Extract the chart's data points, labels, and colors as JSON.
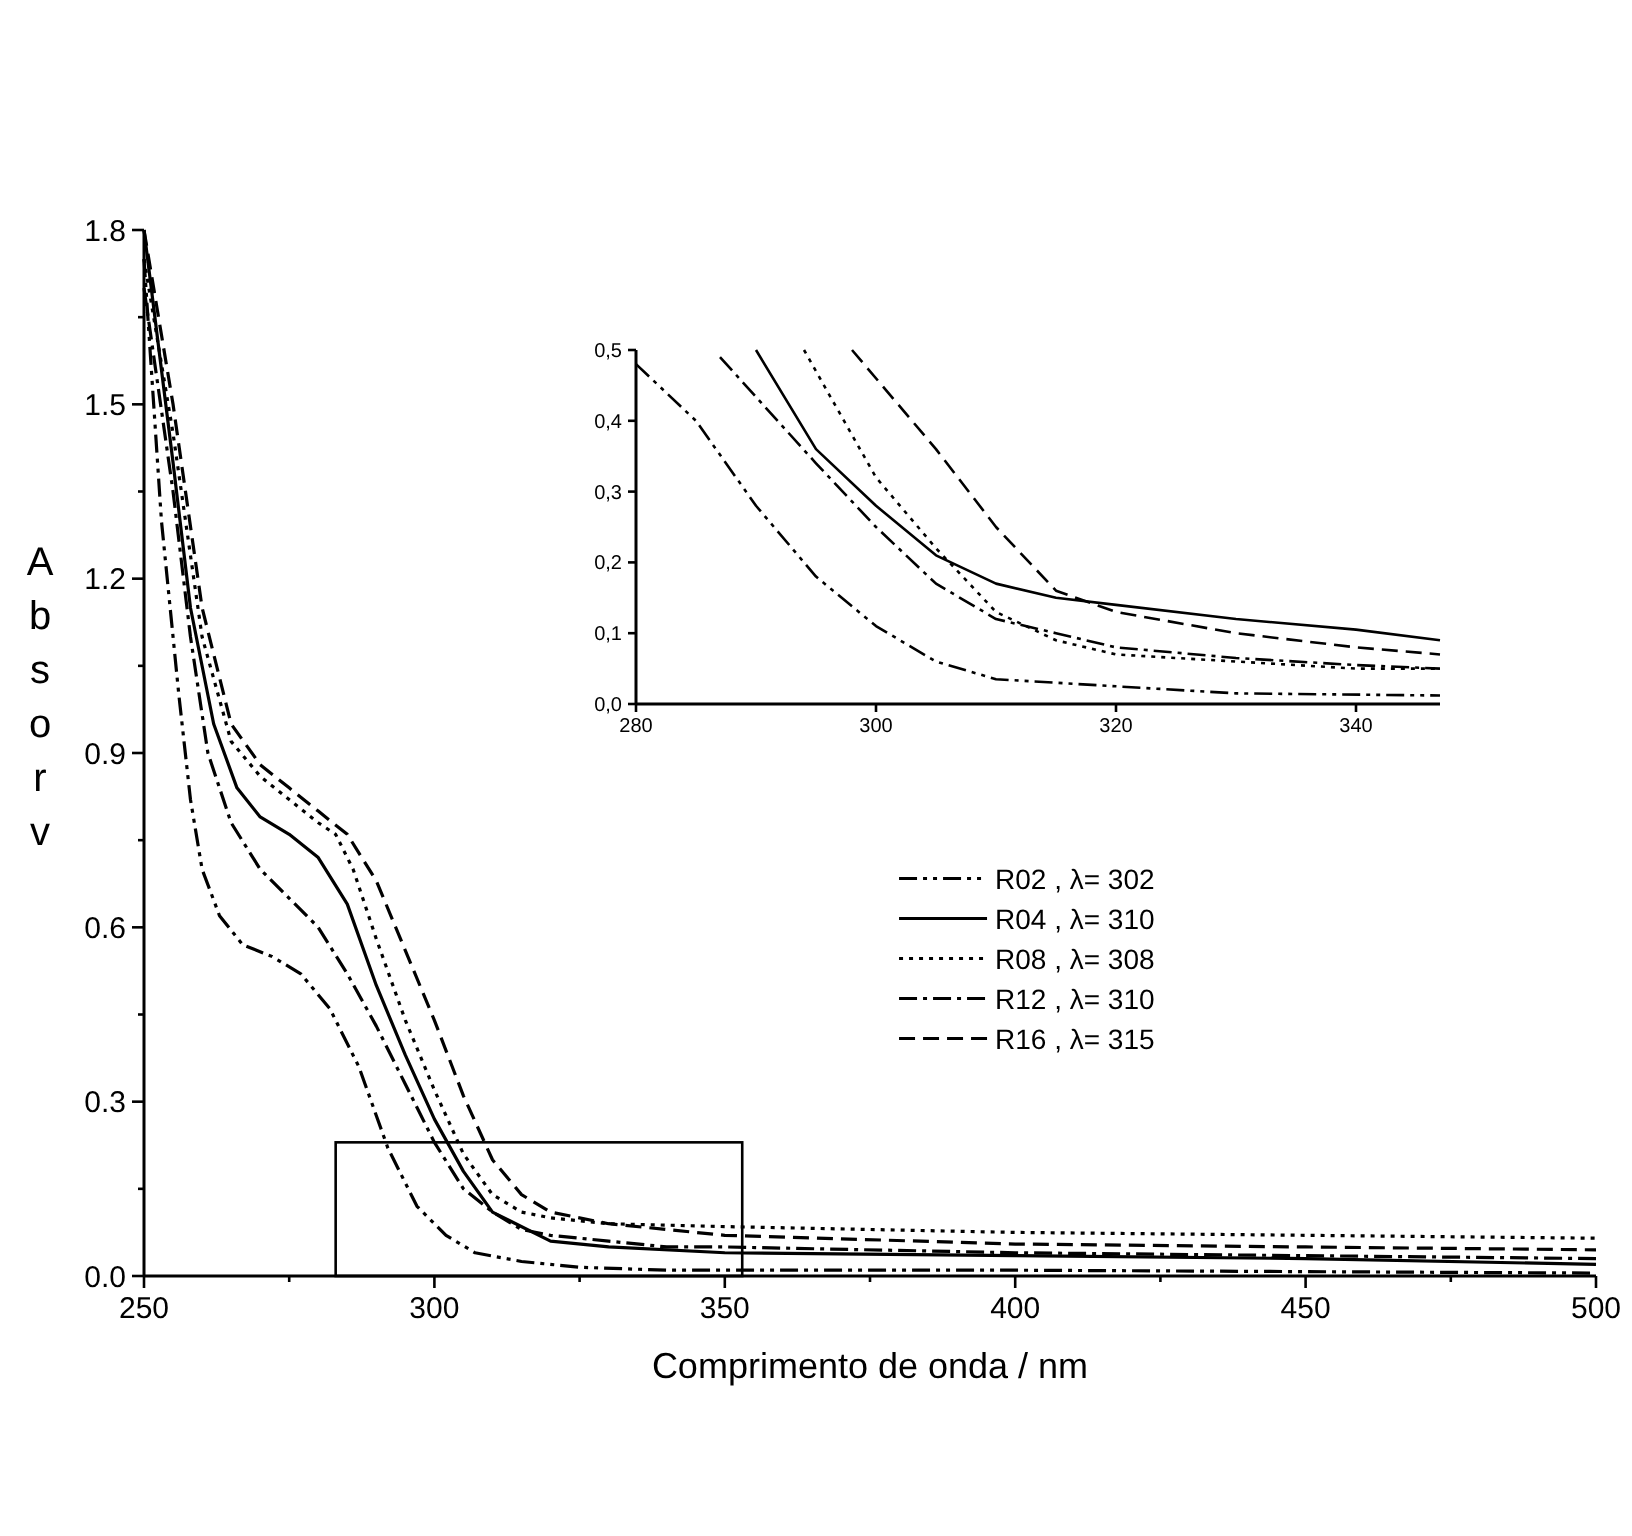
{
  "chart_data": [
    {
      "type": "line",
      "xlabel": "Comprimento de onda / nm",
      "ylabel": "Absorv",
      "xlim": [
        250,
        500
      ],
      "xticks": [
        250,
        {
          "value": 275,
          "label": null
        },
        300,
        {
          "value": 325,
          "label": null
        },
        350,
        {
          "value": 375,
          "label": null
        },
        400,
        {
          "value": 425,
          "label": null
        },
        450,
        {
          "value": 475,
          "label": null
        },
        500
      ],
      "ylim": [
        0,
        1.8
      ],
      "yticks": [
        {
          "value": 0,
          "label": "0.0"
        },
        {
          "value": 0.15,
          "label": null
        },
        0.3,
        {
          "value": 0.45,
          "label": null
        },
        0.6,
        {
          "value": 0.75,
          "label": null
        },
        0.9,
        {
          "value": 1.05,
          "label": null
        },
        1.2,
        {
          "value": 1.35,
          "label": null
        },
        1.5,
        {
          "value": 1.65,
          "label": null
        },
        1.8
      ],
      "grid": false,
      "legend": "right",
      "series": [
        {
          "name": "R02 , λ= 302",
          "color": "#000000",
          "line_style": "dashdotdot",
          "x": [
            250,
            253,
            256,
            258,
            260,
            263,
            267,
            272,
            277,
            282,
            287,
            292,
            297,
            302,
            307,
            315,
            325,
            340,
            400,
            500
          ],
          "values": [
            1.75,
            1.3,
            1.0,
            0.82,
            0.7,
            0.62,
            0.57,
            0.55,
            0.52,
            0.46,
            0.36,
            0.22,
            0.12,
            0.07,
            0.04,
            0.025,
            0.015,
            0.01,
            0.01,
            0.005
          ]
        },
        {
          "name": "R04 , λ= 310",
          "color": "#000000",
          "line_style": "solid",
          "x": [
            250,
            255,
            258,
            262,
            266,
            270,
            275,
            280,
            285,
            290,
            295,
            300,
            305,
            310,
            320,
            330,
            350,
            400,
            450,
            500
          ],
          "values": [
            1.8,
            1.4,
            1.15,
            0.95,
            0.84,
            0.79,
            0.76,
            0.72,
            0.64,
            0.5,
            0.38,
            0.27,
            0.18,
            0.11,
            0.06,
            0.05,
            0.04,
            0.035,
            0.03,
            0.02
          ]
        },
        {
          "name": "R08 , λ= 308",
          "color": "#000000",
          "line_style": "dotted",
          "x": [
            250,
            255,
            260,
            265,
            270,
            275,
            280,
            283,
            286,
            290,
            295,
            300,
            305,
            310,
            315,
            320,
            330,
            350,
            400,
            450,
            500
          ],
          "values": [
            1.75,
            1.45,
            1.1,
            0.92,
            0.86,
            0.82,
            0.78,
            0.76,
            0.7,
            0.58,
            0.44,
            0.32,
            0.21,
            0.14,
            0.11,
            0.1,
            0.09,
            0.085,
            0.075,
            0.07,
            0.065
          ]
        },
        {
          "name": "R12 , λ= 310",
          "color": "#000000",
          "line_style": "dashdot",
          "x": [
            250,
            255,
            258,
            261,
            265,
            270,
            275,
            280,
            285,
            290,
            295,
            300,
            305,
            310,
            315,
            320,
            330,
            340,
            350,
            400,
            450,
            500
          ],
          "values": [
            1.7,
            1.35,
            1.1,
            0.9,
            0.78,
            0.7,
            0.65,
            0.6,
            0.52,
            0.43,
            0.33,
            0.23,
            0.15,
            0.11,
            0.08,
            0.07,
            0.06,
            0.05,
            0.05,
            0.04,
            0.035,
            0.03
          ]
        },
        {
          "name": "R16 , λ= 315",
          "color": "#000000",
          "line_style": "dashed",
          "x": [
            250,
            255,
            260,
            265,
            270,
            275,
            280,
            285,
            290,
            295,
            300,
            305,
            310,
            315,
            320,
            330,
            350,
            400,
            450,
            500
          ],
          "values": [
            1.8,
            1.5,
            1.15,
            0.95,
            0.88,
            0.84,
            0.8,
            0.76,
            0.68,
            0.56,
            0.44,
            0.31,
            0.2,
            0.14,
            0.11,
            0.09,
            0.07,
            0.055,
            0.05,
            0.045
          ]
        }
      ]
    },
    {
      "type": "line",
      "xlim": [
        280,
        347
      ],
      "xticks": [
        280,
        300,
        320,
        340
      ],
      "ylim": [
        0,
        0.5
      ],
      "yticks": [
        {
          "value": 0,
          "label": "0,0"
        },
        {
          "value": 0.1,
          "label": "0,1"
        },
        {
          "value": 0.2,
          "label": "0,2"
        },
        {
          "value": 0.3,
          "label": "0,3"
        },
        {
          "value": 0.4,
          "label": "0,4"
        },
        {
          "value": 0.5,
          "label": "0,5"
        }
      ],
      "grid": false,
      "series": [
        {
          "color": "#000000",
          "line_style": "dashdotdot",
          "x": [
            280,
            285,
            290,
            295,
            300,
            305,
            310,
            320,
            330,
            347
          ],
          "values": [
            0.48,
            0.4,
            0.28,
            0.18,
            0.11,
            0.06,
            0.035,
            0.025,
            0.015,
            0.012
          ]
        },
        {
          "color": "#000000",
          "line_style": "solid",
          "x": [
            290,
            295,
            300,
            305,
            310,
            315,
            320,
            330,
            340,
            347
          ],
          "values": [
            0.5,
            0.36,
            0.28,
            0.21,
            0.17,
            0.15,
            0.14,
            0.12,
            0.105,
            0.09
          ]
        },
        {
          "color": "#000000",
          "line_style": "dotted",
          "x": [
            294,
            300,
            305,
            310,
            315,
            320,
            330,
            340,
            347
          ],
          "values": [
            0.5,
            0.32,
            0.22,
            0.13,
            0.09,
            0.07,
            0.06,
            0.05,
            0.05
          ]
        },
        {
          "color": "#000000",
          "line_style": "dashdot",
          "x": [
            287,
            295,
            300,
            305,
            310,
            315,
            320,
            330,
            340,
            347
          ],
          "values": [
            0.49,
            0.34,
            0.25,
            0.17,
            0.12,
            0.1,
            0.08,
            0.065,
            0.055,
            0.05
          ]
        },
        {
          "color": "#000000",
          "line_style": "dashed",
          "x": [
            298,
            305,
            310,
            315,
            320,
            330,
            340,
            347
          ],
          "values": [
            0.5,
            0.36,
            0.25,
            0.16,
            0.13,
            0.1,
            0.08,
            0.07
          ]
        }
      ]
    }
  ]
}
